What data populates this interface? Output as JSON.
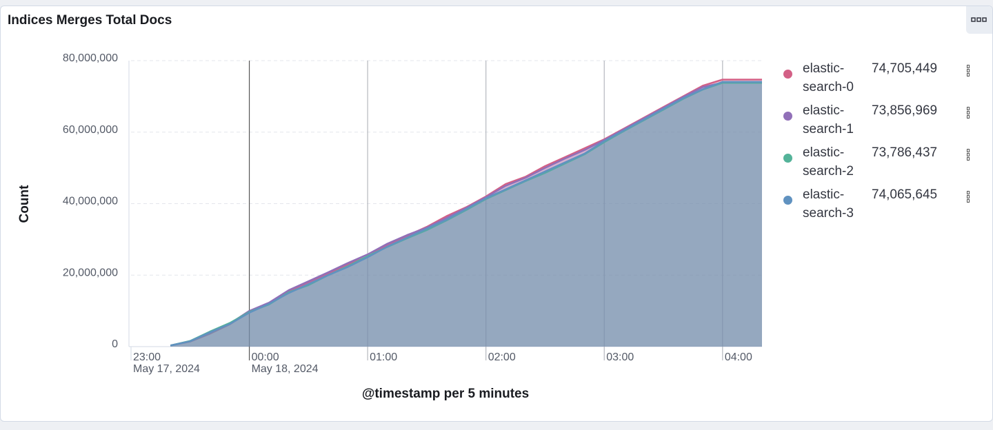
{
  "chart_data": {
    "type": "area",
    "title": "Indices Merges Total Docs",
    "y_label": "Count",
    "x_label": "@timestamp per 5 minutes",
    "x": [
      "2024-05-17 23:20",
      "2024-05-17 23:30",
      "2024-05-17 23:40",
      "2024-05-17 23:50",
      "2024-05-18 00:00",
      "2024-05-18 00:10",
      "2024-05-18 00:20",
      "2024-05-18 00:30",
      "2024-05-18 00:40",
      "2024-05-18 00:50",
      "2024-05-18 01:00",
      "2024-05-18 01:10",
      "2024-05-18 01:20",
      "2024-05-18 01:30",
      "2024-05-18 01:40",
      "2024-05-18 01:50",
      "2024-05-18 02:00",
      "2024-05-18 02:10",
      "2024-05-18 02:20",
      "2024-05-18 02:30",
      "2024-05-18 02:40",
      "2024-05-18 02:50",
      "2024-05-18 03:00",
      "2024-05-18 03:10",
      "2024-05-18 03:20",
      "2024-05-18 03:30",
      "2024-05-18 03:40",
      "2024-05-18 03:50",
      "2024-05-18 04:00",
      "2024-05-18 04:10",
      "2024-05-18 04:20"
    ],
    "xlim": [
      "2024-05-17 23:00",
      "2024-05-18 04:20"
    ],
    "xticks": [
      {
        "value": "2024-05-17 23:00",
        "label": "23:00",
        "date": "May 17, 2024"
      },
      {
        "value": "2024-05-18 00:00",
        "label": "00:00",
        "date": "May 18, 2024"
      },
      {
        "value": "2024-05-18 01:00",
        "label": "01:00"
      },
      {
        "value": "2024-05-18 02:00",
        "label": "02:00"
      },
      {
        "value": "2024-05-18 03:00",
        "label": "03:00"
      },
      {
        "value": "2024-05-18 04:00",
        "label": "04:00"
      }
    ],
    "ylim": [
      0,
      80000000
    ],
    "yticks": [
      0,
      {
        "value": 20000000,
        "label": "20,000,000"
      },
      {
        "value": 40000000,
        "label": "40,000,000"
      },
      {
        "value": 60000000,
        "label": "60,000,000"
      },
      {
        "value": 80000000,
        "label": "80,000,000"
      }
    ],
    "grid": true,
    "legend": "right",
    "series": [
      {
        "name": "elastic-search-0",
        "color": "#d36086",
        "legend_label": "74,705,449",
        "values": [
          300000,
          1400000,
          3600000,
          6200000,
          9800000,
          12000000,
          15500000,
          18000000,
          20500000,
          23000000,
          25200000,
          28500000,
          31000000,
          33500000,
          36500000,
          39000000,
          42000000,
          45500000,
          47500000,
          50500000,
          53000000,
          55500000,
          58000000,
          61000000,
          64000000,
          67000000,
          70000000,
          73000000,
          74705449,
          74705449,
          74705449
        ]
      },
      {
        "name": "elastic-search-1",
        "color": "#9170b8",
        "legend_label": "73,856,969",
        "values": [
          300000,
          1500000,
          3800000,
          6400000,
          10000000,
          12300000,
          15800000,
          18300000,
          20800000,
          23400000,
          25800000,
          28800000,
          31200000,
          33300000,
          36000000,
          38800000,
          41800000,
          45000000,
          47200000,
          50000000,
          52600000,
          55000000,
          57800000,
          60800000,
          63800000,
          66800000,
          69800000,
          72600000,
          73856969,
          73856969,
          73856969
        ]
      },
      {
        "name": "elastic-search-2",
        "color": "#54b399",
        "legend_label": "73,786,437",
        "values": [
          300000,
          1600000,
          4200000,
          6600000,
          9700000,
          11800000,
          15200000,
          17200000,
          20000000,
          22500000,
          25300000,
          27900000,
          30300000,
          32600000,
          35300000,
          38200000,
          41300000,
          43800000,
          46300000,
          48600000,
          51200000,
          53800000,
          57200000,
          60300000,
          63300000,
          66300000,
          69300000,
          71900000,
          73786437,
          73786437,
          73786437
        ]
      },
      {
        "name": "elastic-search-3",
        "color": "#6092c0",
        "legend_label": "74,065,645",
        "values": [
          300000,
          1500000,
          4000000,
          6300000,
          9500000,
          12000000,
          15000000,
          17500000,
          20000000,
          22300000,
          25000000,
          28000000,
          30500000,
          33000000,
          35500000,
          38500000,
          41500000,
          44000000,
          46500000,
          49000000,
          51500000,
          54000000,
          57500000,
          60500000,
          63500000,
          66500000,
          69500000,
          72000000,
          74065645,
          74065645,
          74065645
        ]
      }
    ]
  }
}
